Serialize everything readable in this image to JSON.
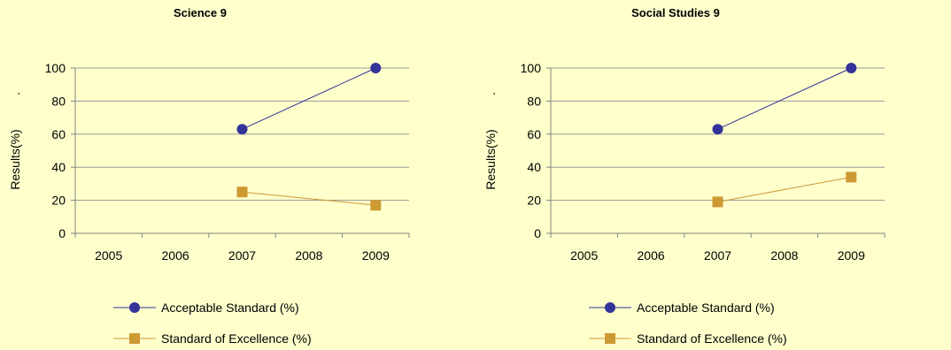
{
  "chart_data": [
    {
      "type": "line",
      "title": "Science 9",
      "ylabel": "Results(%)",
      "ylabel_mark": ".",
      "xlabel": "",
      "categories": [
        "2005",
        "2006",
        "2007",
        "2008",
        "2009"
      ],
      "ylim": [
        0,
        100
      ],
      "yticks": [
        "0",
        "20",
        "40",
        "60",
        "80",
        "100"
      ],
      "grid": true,
      "legend": "bottom",
      "series": [
        {
          "name": "Acceptable Standard (%)",
          "values": [
            null,
            null,
            63,
            null,
            100
          ],
          "color": "#333399",
          "marker": "circle"
        },
        {
          "name": "Standard of Excellence (%)",
          "values": [
            null,
            null,
            25,
            null,
            17
          ],
          "color": "#cc9933",
          "marker": "square"
        }
      ]
    },
    {
      "type": "line",
      "title": "Social Studies 9",
      "ylabel": "Results(%)",
      "ylabel_mark": ".",
      "xlabel": "",
      "categories": [
        "2005",
        "2006",
        "2007",
        "2008",
        "2009"
      ],
      "ylim": [
        0,
        100
      ],
      "yticks": [
        "0",
        "20",
        "40",
        "60",
        "80",
        "100"
      ],
      "grid": true,
      "legend": "bottom",
      "series": [
        {
          "name": "Acceptable Standard (%)",
          "values": [
            null,
            null,
            63,
            null,
            100
          ],
          "color": "#333399",
          "marker": "circle"
        },
        {
          "name": "Standard of Excellence (%)",
          "values": [
            null,
            null,
            19,
            null,
            34
          ],
          "color": "#cc9933",
          "marker": "square"
        }
      ]
    }
  ]
}
